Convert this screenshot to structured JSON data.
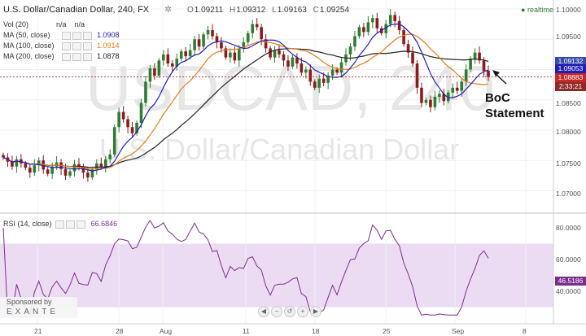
{
  "header": {
    "title": "U.S. Dollar/Canadian Dollar, 240, FX",
    "ohlc": {
      "o": "1.09211",
      "h": "1.09312",
      "l": "1.09163",
      "c": "1.09254"
    },
    "realtime": "realtime"
  },
  "indicators": [
    {
      "name": "Vol (20)",
      "v1": "n/a",
      "v2": "n/a",
      "color": "#555555"
    },
    {
      "name": "MA (50, close)",
      "value": "1.0908",
      "color": "#1f1fb5"
    },
    {
      "name": "MA (100, close)",
      "value": "1.0914",
      "color": "#e87d1f"
    },
    {
      "name": "MA (200, close)",
      "value": "1.0878",
      "color": "#222222"
    }
  ],
  "watermark": {
    "symbol": "USDCAD, 240",
    "name": "U.S. Dollar/Canadian Dollar"
  },
  "annotation": {
    "line1": "BoC",
    "line2": "Statement"
  },
  "price_axis": [
    "1.10000",
    "1.09500",
    "1.09000",
    "1.08500",
    "1.08000",
    "1.07500",
    "1.07000"
  ],
  "price_boxes": {
    "upper": "1.09132",
    "ma50": "1.09053",
    "last": "1.08883",
    "timer": "2:33:21"
  },
  "rsi": {
    "label": "RSI (14, close)",
    "value": "66.6846",
    "last": "46.5186",
    "axis": [
      "80.0000",
      "60.0000",
      "40.0000"
    ]
  },
  "time_axis": [
    "21",
    "28",
    "Aug",
    "11",
    "18",
    "25",
    "Sep",
    "8"
  ],
  "sponsor": {
    "label": "Sponsored by",
    "brand": "EXANTE"
  },
  "nav": [
    "◀",
    "−",
    "↺",
    "+",
    "▶"
  ],
  "colors": {
    "up": "#2e7d32",
    "down": "#8b1a1a",
    "ma50": "#1f1fb5",
    "ma100": "#e87d1f",
    "ma200": "#222222",
    "rsi_line": "#7b2d8e",
    "rsi_band": "#ecdcf3",
    "last_price": "#c62828"
  },
  "chart_data": {
    "type": "candlestick",
    "closes": [
      1.0755,
      1.0748,
      1.074,
      1.0752,
      1.0745,
      1.0738,
      1.073,
      1.0742,
      1.075,
      1.0735,
      1.0728,
      1.074,
      1.0747,
      1.0736,
      1.0725,
      1.0732,
      1.0744,
      1.0739,
      1.073,
      1.0722,
      1.0735,
      1.0745,
      1.074,
      1.0752,
      1.076,
      1.0805,
      1.083,
      1.0818,
      1.0805,
      1.0795,
      1.0812,
      1.0845,
      1.088,
      1.0902,
      1.089,
      1.0915,
      1.0925,
      1.091,
      1.0905,
      1.0918,
      1.093,
      1.0922,
      1.0932,
      1.095,
      1.0938,
      1.0958,
      1.0965,
      1.0955,
      1.0945,
      1.0935,
      1.092,
      1.0928,
      1.0915,
      1.0935,
      1.0945,
      1.096,
      1.0975,
      1.097,
      1.095,
      1.0935,
      1.092,
      1.0932,
      1.0925,
      1.0915,
      1.0905,
      1.092,
      1.091,
      1.0895,
      1.09,
      1.088,
      1.087,
      1.0885,
      1.0878,
      1.089,
      1.09,
      1.0895,
      1.0912,
      1.0925,
      1.0938,
      1.0955,
      1.097,
      1.0962,
      1.0978,
      1.0985,
      1.0968,
      1.096,
      1.0975,
      1.099,
      1.098,
      1.0965,
      1.0942,
      1.0928,
      1.091,
      1.087,
      1.0845,
      1.085,
      1.0838,
      1.0855,
      1.086,
      1.0848,
      1.0862,
      1.087,
      1.0865,
      1.088,
      1.09,
      1.0918,
      1.0928,
      1.0915,
      1.0898,
      1.0888
    ]
  }
}
